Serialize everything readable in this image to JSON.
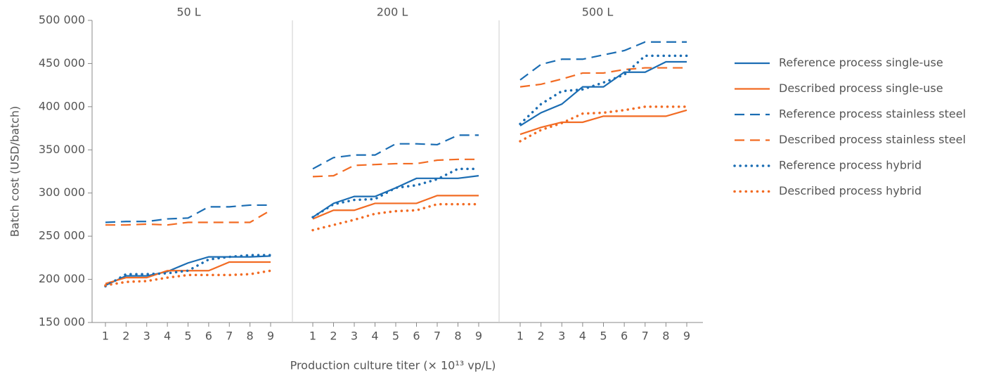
{
  "chart_data": {
    "type": "line",
    "ylabel": "Batch cost (USD/batch)",
    "xlabel": "Production culture titer (× 10¹³ vp/L)",
    "ylim": [
      150000,
      500000
    ],
    "yticks": [
      {
        "value": 150000,
        "label": "150 000"
      },
      {
        "value": 200000,
        "label": "200 000"
      },
      {
        "value": 250000,
        "label": "250 000"
      },
      {
        "value": 300000,
        "label": "300 000"
      },
      {
        "value": 350000,
        "label": "350 000"
      },
      {
        "value": 400000,
        "label": "400 000"
      },
      {
        "value": 450000,
        "label": "450 000"
      },
      {
        "value": 500000,
        "label": "500 000"
      }
    ],
    "series": [
      {
        "name": "Reference process single-use",
        "color": "#1b6db3",
        "style": "solid"
      },
      {
        "name": "Described process single-use",
        "color": "#f26b23",
        "style": "solid"
      },
      {
        "name": "Reference process stainless steel",
        "color": "#1b6db3",
        "style": "dashed"
      },
      {
        "name": "Described process stainless steel",
        "color": "#f26b23",
        "style": "dashed"
      },
      {
        "name": "Reference process hybrid",
        "color": "#1b6db3",
        "style": "dotted"
      },
      {
        "name": "Described process hybrid",
        "color": "#f26b23",
        "style": "dotted"
      }
    ],
    "panels": [
      {
        "title": "50 L",
        "x": [
          1,
          2,
          3,
          4,
          5,
          6,
          7,
          8,
          9
        ],
        "values": [
          [
            193000,
            204000,
            204000,
            209000,
            219000,
            226000,
            226000,
            226000,
            227000
          ],
          [
            195000,
            202000,
            202000,
            210000,
            210000,
            210000,
            220000,
            220000,
            220000
          ],
          [
            266000,
            267000,
            267000,
            270000,
            271000,
            284000,
            284000,
            286000,
            286000
          ],
          [
            263000,
            263000,
            264000,
            263000,
            266000,
            266000,
            266000,
            266000,
            280000
          ],
          [
            192000,
            206000,
            206000,
            207000,
            210000,
            223000,
            226000,
            228000,
            228000
          ],
          [
            193000,
            197000,
            198000,
            202000,
            205000,
            205000,
            205000,
            206000,
            210000
          ]
        ]
      },
      {
        "title": "200 L",
        "x": [
          1,
          2,
          3,
          4,
          5,
          6,
          7,
          8,
          9
        ],
        "values": [
          [
            272000,
            288000,
            296000,
            296000,
            306000,
            317000,
            317000,
            317000,
            320000
          ],
          [
            270000,
            280000,
            280000,
            288000,
            288000,
            288000,
            297000,
            297000,
            297000
          ],
          [
            328000,
            341000,
            344000,
            344000,
            357000,
            357000,
            356000,
            367000,
            367000
          ],
          [
            319000,
            320000,
            332000,
            333000,
            334000,
            334000,
            338000,
            339000,
            339000
          ],
          [
            272000,
            287000,
            292000,
            293000,
            306000,
            309000,
            316000,
            328000,
            328000
          ],
          [
            257000,
            263000,
            269000,
            276000,
            279000,
            280000,
            287000,
            287000,
            287000
          ]
        ]
      },
      {
        "title": "500 L",
        "x": [
          1,
          2,
          3,
          4,
          5,
          6,
          7,
          8,
          9
        ],
        "values": [
          [
            378000,
            393000,
            403000,
            423000,
            423000,
            440000,
            440000,
            452000,
            452000
          ],
          [
            368000,
            376000,
            382000,
            382000,
            389000,
            389000,
            389000,
            389000,
            396000
          ],
          [
            431000,
            449000,
            455000,
            455000,
            460000,
            465000,
            475000,
            475000,
            475000
          ],
          [
            423000,
            426000,
            432000,
            439000,
            439000,
            443000,
            445000,
            445000,
            445000
          ],
          [
            380000,
            403000,
            418000,
            420000,
            428000,
            437000,
            459000,
            459000,
            459000
          ],
          [
            360000,
            373000,
            381000,
            392000,
            393000,
            396000,
            400000,
            400000,
            400000
          ]
        ]
      }
    ]
  }
}
